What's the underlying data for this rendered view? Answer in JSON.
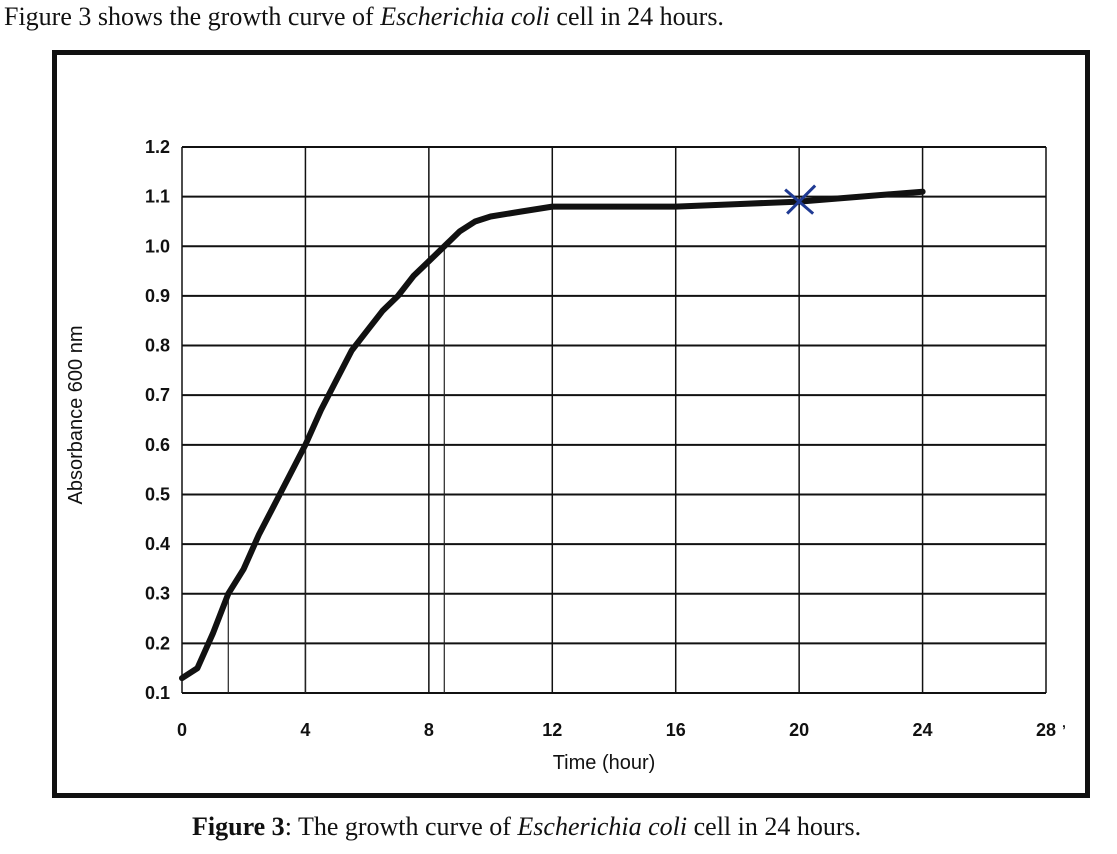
{
  "intro": {
    "prefix": "Figure 3 shows the growth curve of ",
    "organism": "Escherichia coli",
    "suffix": " cell in 24 hours."
  },
  "caption": {
    "label": "Figure 3",
    "prefix": ": The growth curve of ",
    "organism": "Escherichia coli",
    "suffix": " cell in 24 hours."
  },
  "stray_mark": "ʼ",
  "chart_data": {
    "type": "line",
    "title": "",
    "xlabel": "Time (hour)",
    "ylabel": "Absorbance 600 nm",
    "xlim": [
      0,
      28
    ],
    "ylim": [
      0.1,
      1.2
    ],
    "x_ticks": [
      0,
      4,
      8,
      12,
      16,
      20,
      24,
      28
    ],
    "y_ticks": [
      0.1,
      0.2,
      0.3,
      0.4,
      0.5,
      0.6,
      0.7,
      0.8,
      0.9,
      1.0,
      1.1,
      1.2
    ],
    "y_tick_labels": [
      "0.1",
      "0.2",
      "0.3",
      "0.4",
      "0.5",
      "0.6",
      "0.7",
      "0.8",
      "0.9",
      "1.0",
      "1.1",
      "1.2"
    ],
    "grid": true,
    "series": [
      {
        "x": [
          0,
          0.5,
          1,
          1.5,
          2,
          2.5,
          3,
          3.5,
          4,
          4.5,
          5,
          5.5,
          6,
          6.5,
          7,
          7.5,
          8,
          8.5,
          9,
          9.5,
          10,
          11,
          12,
          14,
          16,
          18,
          20,
          22,
          24
        ],
        "y": [
          0.13,
          0.15,
          0.22,
          0.3,
          0.35,
          0.42,
          0.48,
          0.54,
          0.6,
          0.67,
          0.73,
          0.79,
          0.83,
          0.87,
          0.9,
          0.94,
          0.97,
          1.0,
          1.03,
          1.05,
          1.06,
          1.07,
          1.08,
          1.08,
          1.08,
          1.085,
          1.09,
          1.1,
          1.11
        ],
        "color": "#111111"
      }
    ],
    "guide_lines": [
      {
        "x": 1.5,
        "y": 0.3
      },
      {
        "x": 4.0,
        "y": 0.6
      },
      {
        "x": 8.5,
        "y": 1.0
      }
    ],
    "marker": {
      "x": 20,
      "y": 1.09,
      "symbol": "x",
      "color": "#1f3a93"
    }
  }
}
